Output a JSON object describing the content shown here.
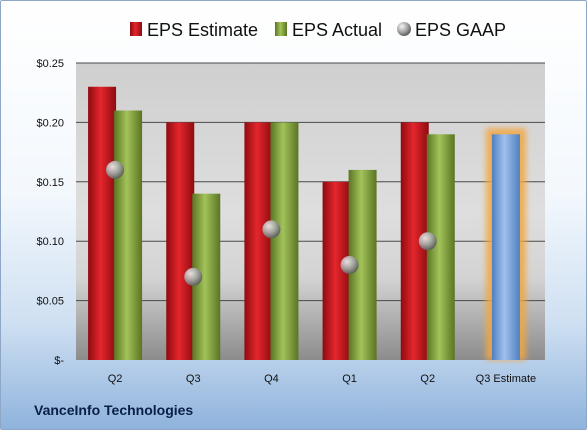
{
  "chart_data": {
    "type": "bar",
    "categories": [
      "Q2",
      "Q3",
      "Q4",
      "Q1",
      "Q2",
      "Q3 Estimate"
    ],
    "series": [
      {
        "name": "EPS Estimate",
        "values": [
          0.23,
          0.2,
          0.2,
          0.15,
          0.2,
          null
        ]
      },
      {
        "name": "EPS Actual",
        "values": [
          0.21,
          0.14,
          0.2,
          0.16,
          0.19,
          0.19
        ]
      },
      {
        "name": "EPS GAAP",
        "values": [
          0.16,
          0.07,
          0.11,
          0.08,
          0.1,
          null
        ]
      }
    ],
    "yticks": [
      {
        "value": 0.25,
        "label": "$0.25"
      },
      {
        "value": 0.2,
        "label": "$0.20"
      },
      {
        "value": 0.15,
        "label": "$0.15"
      },
      {
        "value": 0.1,
        "label": "$0.10"
      },
      {
        "value": 0.05,
        "label": "$0.05"
      },
      {
        "value": 0.0,
        "label": "$-"
      }
    ],
    "ylim": [
      0,
      0.25
    ],
    "grid": true,
    "legend_position": "top",
    "colors": {
      "EPS Estimate": "#c8161d",
      "EPS Actual": "#8aaa3e",
      "EPS GAAP": "#a8a8a8",
      "Q3 Estimate bar": "#7ea6dc",
      "Q3 Estimate glow": "#f4a640"
    }
  },
  "company": "VanceInfo Technologies"
}
